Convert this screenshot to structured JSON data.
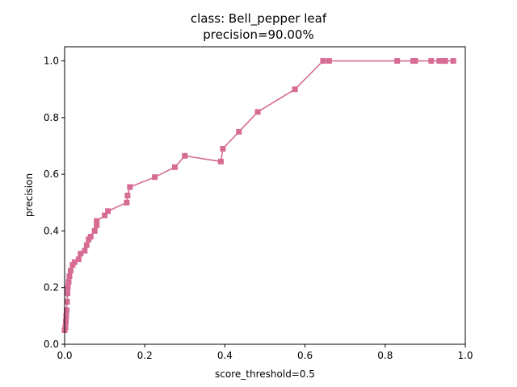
{
  "chart_data": {
    "type": "line",
    "title_line1": "class: Bell_pepper leaf",
    "title_line2": "precision=90.00%",
    "xlabel": "score_threshold=0.5",
    "ylabel": "precision",
    "xlim": [
      0.0,
      1.0
    ],
    "ylim": [
      0.0,
      1.05
    ],
    "xticks": [
      "0.0",
      "0.2",
      "0.4",
      "0.6",
      "0.8",
      "1.0"
    ],
    "yticks": [
      "0.0",
      "0.2",
      "0.4",
      "0.6",
      "0.8",
      "1.0"
    ],
    "grid": false,
    "series": [
      {
        "color": "#d66b94",
        "marker": "square",
        "x": [
          0.0,
          0.002,
          0.003,
          0.004,
          0.005,
          0.006,
          0.007,
          0.008,
          0.01,
          0.012,
          0.015,
          0.02,
          0.025,
          0.035,
          0.04,
          0.05,
          0.055,
          0.06,
          0.065,
          0.075,
          0.08,
          0.08,
          0.1,
          0.108,
          0.155,
          0.157,
          0.163,
          0.225,
          0.275,
          0.3,
          0.39,
          0.395,
          0.435,
          0.482,
          0.575,
          0.645,
          0.66,
          0.83,
          0.87,
          0.875,
          0.915,
          0.935,
          0.945,
          0.95,
          0.97
        ],
        "y": [
          0.05,
          0.06,
          0.08,
          0.1,
          0.12,
          0.15,
          0.18,
          0.2,
          0.22,
          0.24,
          0.26,
          0.28,
          0.29,
          0.3,
          0.32,
          0.33,
          0.35,
          0.37,
          0.38,
          0.4,
          0.42,
          0.435,
          0.455,
          0.47,
          0.5,
          0.525,
          0.555,
          0.59,
          0.625,
          0.665,
          0.645,
          0.69,
          0.75,
          0.82,
          0.9,
          1.0,
          1.0,
          1.0,
          1.0,
          1.0,
          1.0,
          1.0,
          1.0,
          1.0,
          1.0
        ]
      }
    ]
  }
}
